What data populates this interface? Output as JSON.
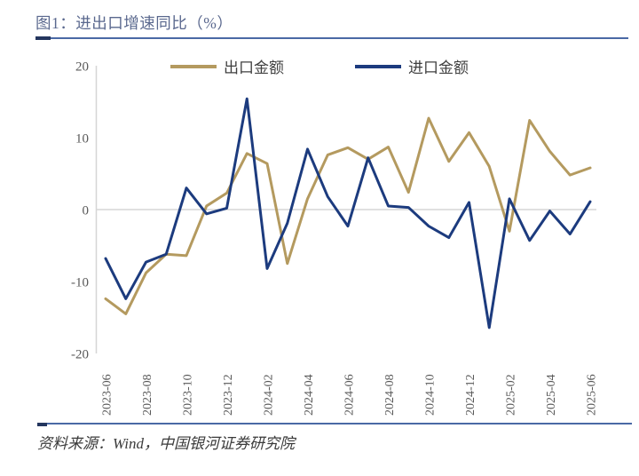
{
  "page": {
    "title": "图1：进出口增速同比（%）",
    "source_note": "资料来源：Wind，中国银河证券研究院"
  },
  "colors": {
    "export_line": "#b49a5f",
    "import_line": "#1c3b7e",
    "divider": "#4a69a5",
    "divider_accent": "#24365e",
    "title_text": "#5a688e",
    "axis_text": "#595959",
    "grid_line": "#d6d6d6",
    "legend_text": "#404040",
    "source_text": "#3a3a3a"
  },
  "chart_data": {
    "type": "line",
    "title": "进出口增速同比（%）",
    "unit": "%",
    "x": [
      "2023-06",
      "2023-07",
      "2023-08",
      "2023-09",
      "2023-10",
      "2023-11",
      "2023-12",
      "2024-01",
      "2024-02",
      "2024-03",
      "2024-04",
      "2024-05",
      "2024-06",
      "2024-07",
      "2024-08",
      "2024-09",
      "2024-10",
      "2024-11",
      "2024-12",
      "2025-01",
      "2025-02",
      "2025-03",
      "2025-04",
      "2025-05",
      "2025-06"
    ],
    "series": [
      {
        "name": "出口金额",
        "color": "#b49a5f",
        "values": [
          -12.4,
          -14.5,
          -8.8,
          -6.2,
          -6.4,
          0.5,
          2.3,
          7.8,
          6.4,
          -7.5,
          1.5,
          7.6,
          8.6,
          7.0,
          8.7,
          2.4,
          12.7,
          6.7,
          10.7,
          6.0,
          -3.0,
          12.4,
          8.1,
          4.8,
          5.8
        ]
      },
      {
        "name": "进口金额",
        "color": "#1c3b7e",
        "values": [
          -6.8,
          -12.4,
          -7.3,
          -6.2,
          3.0,
          -0.6,
          0.2,
          15.4,
          -8.2,
          -1.9,
          8.4,
          1.8,
          -2.3,
          7.2,
          0.5,
          0.3,
          -2.3,
          -3.9,
          1.0,
          -16.4,
          1.5,
          -4.3,
          -0.2,
          -3.4,
          1.1
        ]
      }
    ],
    "ylim": [
      -20,
      20
    ],
    "yticks": [
      20,
      10,
      0,
      -10,
      -20
    ],
    "x_tick_every": 2,
    "legend_position": "top-center",
    "grid": "zero-line-only"
  }
}
